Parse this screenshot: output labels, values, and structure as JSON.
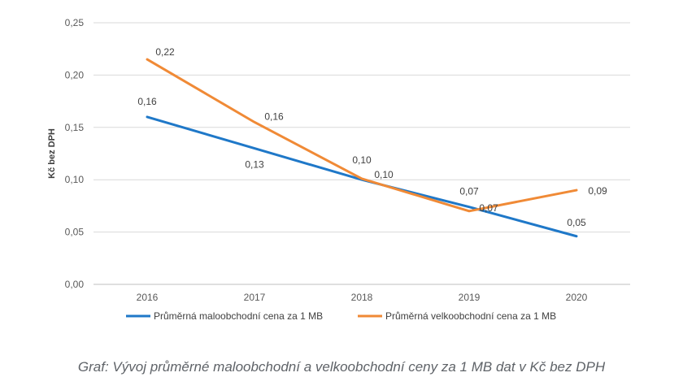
{
  "chart_data": {
    "type": "line",
    "title": "",
    "xlabel": "",
    "ylabel": "Kč bez DPH",
    "categories": [
      "2016",
      "2017",
      "2018",
      "2019",
      "2020"
    ],
    "ylim": [
      0,
      0.25
    ],
    "yticks": [
      0,
      0.05,
      0.1,
      0.15,
      0.2,
      0.25
    ],
    "ytick_labels": [
      "0,00",
      "0,05",
      "0,10",
      "0,15",
      "0,20",
      "0,25"
    ],
    "grid": true,
    "legend_position": "bottom",
    "series": [
      {
        "name": "Průměrná maloobchodní cena za 1 MB",
        "color": "#1f78c8",
        "values": [
          0.16,
          0.13,
          0.1,
          0.074,
          0.046
        ],
        "labels": [
          "0,16",
          "0,13",
          "0,10",
          "0,07",
          "0,05"
        ]
      },
      {
        "name": "Průměrná velkoobchodní cena za 1 MB",
        "color": "#f08a36",
        "values": [
          0.215,
          0.155,
          0.101,
          0.07,
          0.09
        ],
        "labels": [
          "0,22",
          "0,16",
          "0,10",
          "0,07",
          "0,09"
        ]
      }
    ]
  },
  "caption": "Graf: Vývoj průměrné maloobchodní a velkoobchodní ceny za 1 MB dat v Kč bez DPH"
}
